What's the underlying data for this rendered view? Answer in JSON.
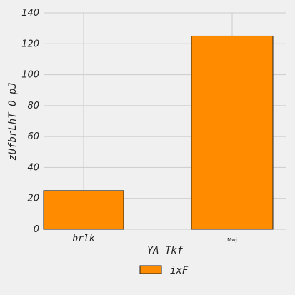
{
  "chart_data": {
    "type": "bar",
    "categories": [
      "brlk",
      "Mwj"
    ],
    "series": [
      {
        "name": "ixF",
        "values": [
          25,
          125
        ],
        "color": "#ff8c00"
      }
    ],
    "title": "",
    "xlabel": "YA Tkf",
    "ylabel": "zUfbrLhT  O pJ",
    "ylim": [
      0,
      140
    ],
    "yticks": [
      0,
      20,
      40,
      60,
      80,
      100,
      120,
      140
    ],
    "grid": true,
    "legend_position": "bottom-center"
  }
}
